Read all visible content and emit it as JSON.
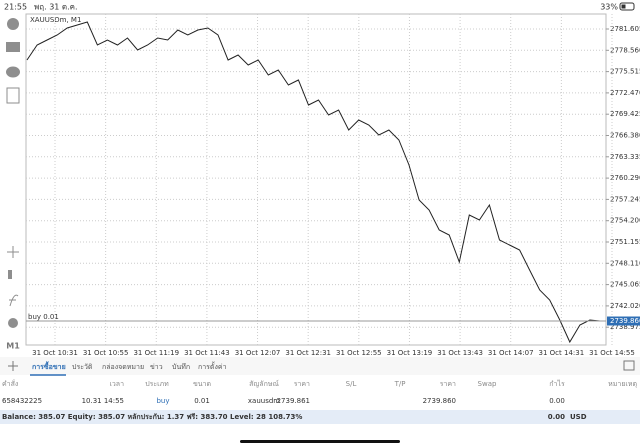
{
  "status_bar": {
    "time": "21:55",
    "date": "พฤ. 31 ต.ค.",
    "battery": "33%"
  },
  "toolbar": {
    "timeframe": "M1"
  },
  "chart_data": {
    "type": "line",
    "title": "XAUUSDm, M1",
    "color": "#222222",
    "grid": true,
    "values": [
      2777.17,
      2779.32,
      2780.03,
      2780.75,
      2781.75,
      2782.18,
      2782.61,
      2779.32,
      2780.03,
      2779.32,
      2780.32,
      2778.6,
      2779.32,
      2780.32,
      2780.03,
      2781.46,
      2780.75,
      2781.46,
      2781.75,
      2780.75,
      2777.17,
      2777.89,
      2776.46,
      2777.17,
      2775.03,
      2775.74,
      2773.6,
      2774.31,
      2770.74,
      2771.46,
      2769.31,
      2770.03,
      2767.17,
      2768.6,
      2767.88,
      2766.45,
      2767.17,
      2765.74,
      2762.16,
      2757.16,
      2755.73,
      2752.87,
      2752.16,
      2748.3,
      2755.01,
      2754.3,
      2756.44,
      2751.44,
      2750.73,
      2750.01,
      2747.15,
      2744.29,
      2742.86,
      2740.0,
      2736.86,
      2739.29,
      2740.0,
      2739.86
    ],
    "ylim": [
      2736.43,
      2783.75
    ],
    "yticks": [
      2781.605,
      {
        "value": 2778.56,
        "label": "2778.560"
      },
      2775.515,
      {
        "value": 2772.47,
        "label": "2772.470"
      },
      2769.425,
      {
        "value": 2766.38,
        "label": "2766.380"
      },
      2763.335,
      {
        "value": 2760.29,
        "label": "2760.290"
      },
      2757.245,
      {
        "value": 2754.2,
        "label": "2754.200"
      },
      2751.155,
      {
        "value": 2748.11,
        "label": "2748.110"
      },
      2745.065,
      {
        "value": 2742.02,
        "label": "2742.020"
      },
      2738.975
    ],
    "xtick_labels": [
      "31 Oct 10:31",
      "31 Oct 10:55",
      "31 Oct 11:19",
      "31 Oct 11:43",
      "31 Oct 12:07",
      "31 Oct 12:31",
      "31 Oct 12:55",
      "31 Oct 13:19",
      "31 Oct 13:43",
      "31 Oct 14:07",
      "31 Oct 14:31",
      "31 Oct 14:55"
    ],
    "order_line": {
      "label": "buy 0.01",
      "value": 2739.861
    },
    "current_price": {
      "value": 2739.86,
      "label": "2739.860"
    }
  },
  "tabs": [
    "การซื้อขาย",
    "ประวัติ",
    "กล่องจดหมาย",
    "ข่าว",
    "บันทึก",
    "การตั้งค่า"
  ],
  "table": {
    "header": [
      "คำสั่ง",
      "เวลา",
      "ประเภท",
      "ขนาด",
      "สัญลักษณ์",
      "ราคา",
      "S/L",
      "T/P",
      "ราคา",
      "Swap",
      "กำไร",
      "หมายเหตุ"
    ],
    "row": {
      "order": "658432225",
      "time": "10.31 14:55",
      "type": "buy",
      "volume": "0.01",
      "symbol": "xauusdm",
      "open_price": "2739.861",
      "price": "2739.860",
      "profit": "0.00"
    },
    "summary": {
      "text": "Balance: 385.07 Equity: 385.07 หลักประกัน: 1.37 ฟรี: 383.70 Level: 28 108.73%",
      "profit": "0.00",
      "currency": "USD"
    }
  }
}
